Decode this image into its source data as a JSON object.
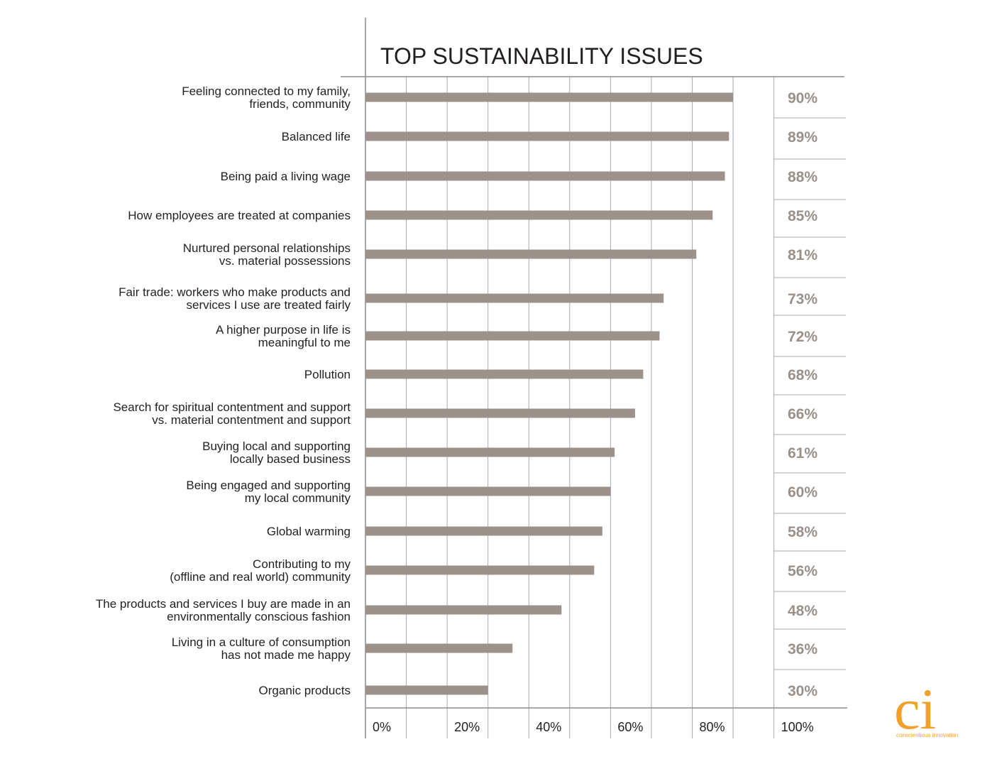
{
  "chart_data": {
    "type": "bar",
    "orientation": "horizontal",
    "title": "TOP SUSTAINABILITY ISSUES",
    "categories": [
      [
        "Feeling connected to my family,",
        "friends, community"
      ],
      [
        "Balanced life"
      ],
      [
        "Being paid a living wage"
      ],
      [
        "How employees are treated at companies"
      ],
      [
        "Nurtured personal relationships",
        "vs. material possessions"
      ],
      [
        "Fair trade: workers who make products and",
        "services I use are treated fairly"
      ],
      [
        "A higher purpose in life is",
        "meaningful to me"
      ],
      [
        "Pollution"
      ],
      [
        "Search for spiritual contentment and support",
        "vs. material contentment and support"
      ],
      [
        "Buying local and supporting",
        "locally based business"
      ],
      [
        "Being engaged and supporting",
        "my local community"
      ],
      [
        "Global warming"
      ],
      [
        "Contributing to my",
        "(offline and real world) community"
      ],
      [
        "The products and services I buy are made in an",
        "environmentally conscious fashion"
      ],
      [
        "Living in a culture of consumption",
        "has not made me happy"
      ],
      [
        "Organic products"
      ]
    ],
    "values": [
      90,
      89,
      88,
      85,
      81,
      73,
      72,
      68,
      66,
      61,
      60,
      58,
      56,
      48,
      36,
      30
    ],
    "value_labels": [
      "90%",
      "89%",
      "88%",
      "85%",
      "81%",
      "73%",
      "72%",
      "68%",
      "66%",
      "61%",
      "60%",
      "58%",
      "56%",
      "48%",
      "36%",
      "30%"
    ],
    "xlim": [
      0,
      100
    ],
    "x_ticks": [
      0,
      20,
      40,
      60,
      80,
      100
    ],
    "x_tick_labels": [
      "0%",
      "20%",
      "40%",
      "60%",
      "80%",
      "100%"
    ],
    "grid": true,
    "bar_color": "#9c918b",
    "value_label_color": "#9a908a",
    "grid_color": "#a7a9ac"
  },
  "logo": {
    "mark": "ci",
    "name": "conscientious innovation",
    "color": "#f2a02c"
  }
}
